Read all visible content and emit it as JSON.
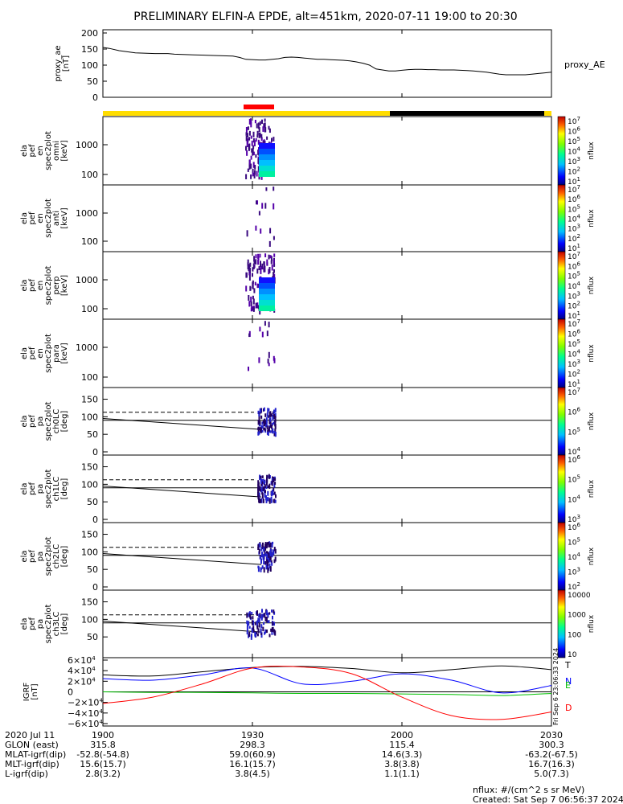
{
  "title": "PRELIMINARY ELFIN-A EPDE, alt=451km, 2020-07-11 19:00 to 20:30",
  "side_stamp": "Fri Sep  6 23:06:33 2024",
  "ae_panel": {
    "ylabel": [
      "proxy_ae",
      "[nT]"
    ],
    "yticks": [
      "200",
      "150",
      "100",
      "50",
      "0"
    ],
    "series_label": "proxy_AE",
    "ylim": [
      0,
      210
    ],
    "x_min": [
      0,
      10,
      25,
      50,
      80,
      100,
      110,
      140,
      170,
      200,
      210,
      220,
      240,
      250,
      270,
      280,
      290,
      300,
      310,
      320,
      330,
      340,
      350,
      360,
      370,
      380,
      390,
      400,
      410,
      420,
      440,
      450,
      460,
      470,
      480,
      490,
      500,
      510,
      520,
      530,
      540,
      550,
      560,
      570,
      580,
      590,
      600,
      610,
      620,
      630,
      640,
      650,
      660,
      670,
      680,
      690
    ],
    "ae_nT": [
      155,
      152,
      145,
      138,
      136,
      136,
      134,
      132,
      130,
      128,
      124,
      118,
      116,
      116,
      120,
      124,
      125,
      124,
      122,
      120,
      118,
      118,
      117,
      116,
      115,
      113,
      110,
      106,
      100,
      88,
      82,
      82,
      84,
      86,
      87,
      87,
      86,
      86,
      85,
      85,
      85,
      84,
      83,
      82,
      80,
      78,
      75,
      72,
      70,
      70,
      70,
      70,
      72,
      74,
      76,
      78
    ]
  },
  "status_bars": {
    "yellow": "#ffdd00",
    "black": "#000000",
    "red": "#ff0000"
  },
  "energy_panels": [
    {
      "ylabel": [
        "ela",
        "pef",
        "en",
        "spec2plot",
        "omni",
        "[keV]"
      ],
      "yticks": [
        "1000",
        "100"
      ],
      "cb_label": "nflux",
      "cb_ticks": [
        "10^7",
        "10^6",
        "10^5",
        "10^4",
        "10^3",
        "10^2",
        "10^1"
      ]
    },
    {
      "ylabel": [
        "ela",
        "pef",
        "en",
        "spec2plot",
        "anti",
        "[keV]"
      ],
      "yticks": [
        "1000",
        "100"
      ],
      "cb_label": "nflux",
      "cb_ticks": [
        "10^7",
        "10^6",
        "10^5",
        "10^4",
        "10^3",
        "10^2",
        "10^1"
      ]
    },
    {
      "ylabel": [
        "ela",
        "pef",
        "en",
        "spec2plot",
        "perp",
        "[keV]"
      ],
      "yticks": [
        "1000",
        "100"
      ],
      "cb_label": "nflux",
      "cb_ticks": [
        "10^7",
        "10^6",
        "10^5",
        "10^4",
        "10^3",
        "10^2",
        "10^1"
      ]
    },
    {
      "ylabel": [
        "ela",
        "pef",
        "en",
        "spec2plot",
        "para",
        "[keV]"
      ],
      "yticks": [
        "1000",
        "100"
      ],
      "cb_label": "nflux",
      "cb_ticks": [
        "10^7",
        "10^6",
        "10^5",
        "10^4",
        "10^3",
        "10^2",
        "10^1"
      ]
    }
  ],
  "pa_panels": [
    {
      "ylabel": [
        "ela",
        "pef",
        "pa",
        "spec2plot",
        "ch0LC",
        "[deg]"
      ],
      "yticks": [
        "150",
        "100",
        "50",
        "0"
      ],
      "cb_label": "nflux",
      "cb_ticks": [
        "10^7",
        "10^6",
        "10^5",
        "10^4"
      ]
    },
    {
      "ylabel": [
        "ela",
        "pef",
        "pa",
        "spec2plot",
        "ch1LC",
        "[deg]"
      ],
      "yticks": [
        "150",
        "100",
        "50",
        "0"
      ],
      "cb_label": "nflux",
      "cb_ticks": [
        "10^6",
        "10^5",
        "10^4",
        "10^3"
      ]
    },
    {
      "ylabel": [
        "ela",
        "pef",
        "pa",
        "spec2plot",
        "ch2LC",
        "[deg]"
      ],
      "yticks": [
        "150",
        "100",
        "50",
        "0"
      ],
      "cb_label": "nflux",
      "cb_ticks": [
        "10^6",
        "10^5",
        "10^4",
        "10^3",
        "10^2"
      ]
    },
    {
      "ylabel": [
        "ela",
        "pef",
        "pa",
        "spec2plot",
        "ch3LC",
        "[deg]"
      ],
      "yticks": [
        "150",
        "100",
        "50"
      ],
      "cb_label": "nflux",
      "cb_ticks": [
        "10000",
        "1000",
        "100",
        "10"
      ]
    }
  ],
  "chart_data": {
    "type": "line",
    "title": "PRELIMINARY ELFIN-A EPDE, alt=451km, 2020-07-11 19:00 to 20:30",
    "ylabel": "IGRF [nT]",
    "ylim": [
      -60000,
      60000
    ],
    "yticks": [
      "6×10^4",
      "4×10^4",
      "2×10^4",
      "0",
      "−2×10^4",
      "−4×10^4",
      "−6×10^4"
    ],
    "x_min": [
      0,
      10,
      20,
      30,
      40,
      50,
      60,
      70,
      80,
      90
    ],
    "series": [
      {
        "name": "T",
        "color": "#000000",
        "values": [
          32000,
          30000,
          38000,
          46000,
          48000,
          44000,
          36000,
          42000,
          49000,
          42000
        ]
      },
      {
        "name": "N",
        "color": "#0000ff",
        "values": [
          25000,
          22000,
          32000,
          45000,
          15000,
          20000,
          34000,
          22000,
          -2000,
          12000
        ]
      },
      {
        "name": "E",
        "color": "#00c000",
        "values": [
          0,
          -1000,
          -1000,
          -2000,
          -3000,
          -3000,
          -4000,
          -5000,
          -7000,
          -3000
        ]
      },
      {
        "name": "D",
        "color": "#ff0000",
        "values": [
          -22000,
          -10000,
          15000,
          45000,
          47000,
          34000,
          -10000,
          -45000,
          -52000,
          -38000
        ]
      }
    ]
  },
  "x_axis": {
    "ticks": [
      "1900",
      "1930",
      "2000",
      "2030"
    ],
    "rows": [
      {
        "label": "2020 Jul 11",
        "values": [
          "1900",
          "1930",
          "2000",
          "2030"
        ]
      },
      {
        "label": "GLON (east)",
        "values": [
          "315.8",
          "298.3",
          "115.4",
          "300.3"
        ]
      },
      {
        "label": "MLAT-igrf(dip)",
        "values": [
          "-52.8(-54.8)",
          "59.0(60.9)",
          "14.6(3.3)",
          "-63.2(-67.5)"
        ]
      },
      {
        "label": "MLT-igrf(dip)",
        "values": [
          "15.6(15.7)",
          "16.1(15.7)",
          "3.8(3.8)",
          "16.7(16.3)"
        ]
      },
      {
        "label": "L-igrf(dip)",
        "values": [
          "2.8(3.2)",
          "3.8(4.5)",
          "1.1(1.1)",
          "5.0(7.3)"
        ]
      }
    ]
  },
  "footer": {
    "units": "nflux: #/(cm^2 s sr MeV)",
    "created": "Created: Sat Sep  7 06:56:37 2024"
  }
}
